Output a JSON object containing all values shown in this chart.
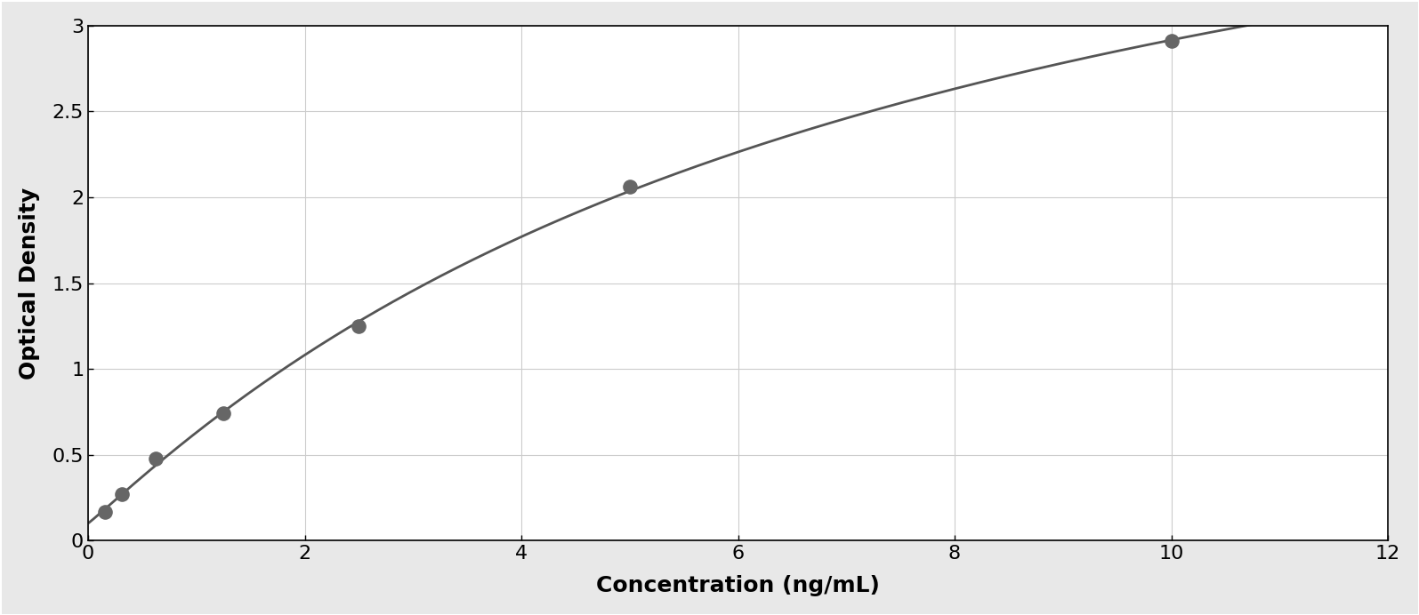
{
  "x_data": [
    0.156,
    0.313,
    0.625,
    1.25,
    2.5,
    5.0,
    10.0
  ],
  "y_data": [
    0.168,
    0.27,
    0.48,
    0.74,
    1.25,
    2.06,
    2.91
  ],
  "point_color": "#666666",
  "line_color": "#555555",
  "xlabel": "Concentration (ng/mL)",
  "ylabel": "Optical Density",
  "xlim": [
    0,
    12
  ],
  "ylim": [
    0,
    3.0
  ],
  "xticks": [
    0,
    2,
    4,
    6,
    8,
    10,
    12
  ],
  "yticks": [
    0,
    0.5,
    1.0,
    1.5,
    2.0,
    2.5,
    3.0
  ],
  "grid_color": "#cccccc",
  "background_color": "#ffffff",
  "border_color": "#000000",
  "xlabel_fontsize": 18,
  "ylabel_fontsize": 18,
  "tick_fontsize": 16,
  "point_size": 120,
  "line_width": 2.0,
  "outer_border_color": "#aaaaaa",
  "figure_bg": "#e8e8e8"
}
